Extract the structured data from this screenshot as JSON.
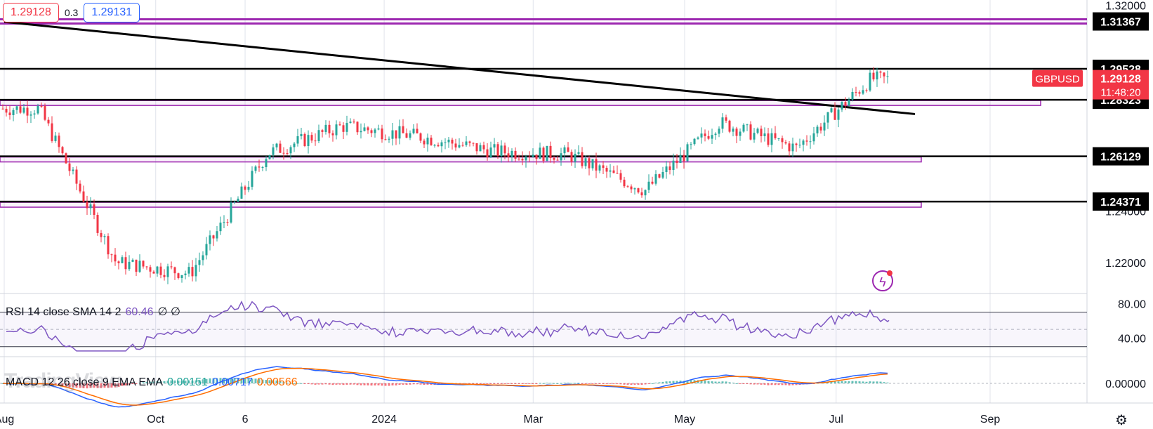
{
  "hud": {
    "bid": "1.29128",
    "spread": "0.3",
    "ask": "1.29131"
  },
  "symbol_tag": {
    "symbol": "GBPUSD",
    "price": "1.29128",
    "countdown": "11:48:20"
  },
  "rsi": {
    "label": "RSI 14 close SMA 14 2",
    "value": "60.46",
    "extra": "∅ ∅"
  },
  "macd": {
    "label": "MACD 12 26 close 9 EMA EMA",
    "hist": "0.00151",
    "macd": "0.00717",
    "signal": "0.00566"
  },
  "watermark": "TradingView",
  "colors": {
    "up": "#26a69a",
    "down": "#f23645",
    "zone": "#9c27b0",
    "rsi_line": "#7e57c2",
    "macd_line": "#2962ff",
    "signal_line": "#ff6d00",
    "level": "#000000"
  },
  "chart_data": {
    "type": "candlestick",
    "symbol": "GBPUSD",
    "timeframe": "1D",
    "x_tick_labels": [
      "Aug",
      "Oct",
      "6",
      "2024",
      "Mar",
      "May",
      "Jul",
      "Sep"
    ],
    "y_tick_labels": [
      "1.32000",
      "1.24000",
      "1.22000"
    ],
    "ylim": [
      1.208,
      1.322
    ],
    "levels": [
      {
        "price": 1.31367,
        "label": "1.31367",
        "style": "zone",
        "color": "#9c27b0"
      },
      {
        "price": 1.29528,
        "label": "1.29528",
        "style": "line",
        "color": "#000000"
      },
      {
        "price": 1.28323,
        "label": "1.28323",
        "style": "line+zone",
        "color": "#000000"
      },
      {
        "price": 1.26129,
        "label": "1.26129",
        "style": "line+zone",
        "color": "#000000"
      },
      {
        "price": 1.24371,
        "label": "1.24371",
        "style": "line+zone",
        "color": "#000000"
      }
    ],
    "trendline": {
      "from": [
        "2023-08-01",
        1.3135
      ],
      "to": [
        "2024-08-01",
        1.2777
      ]
    },
    "monthly_closes": [
      [
        "2023-08",
        1.2798
      ],
      [
        "2023-09",
        1.2201
      ],
      [
        "2023-10",
        1.2158
      ],
      [
        "2023-11",
        1.2625
      ],
      [
        "2023-12",
        1.273
      ],
      [
        "2024-01",
        1.269
      ],
      [
        "2024-02",
        1.2631
      ],
      [
        "2024-03",
        1.262
      ],
      [
        "2024-04",
        1.248
      ],
      [
        "2024-05",
        1.2744
      ],
      [
        "2024-06",
        1.2645
      ],
      [
        "2024-07",
        1.2913
      ]
    ],
    "rsi_axis_labels": [
      "80.00",
      "40.00"
    ],
    "rsi_last": 60.46,
    "macd_axis_labels": [
      "0.00000"
    ],
    "macd_last": {
      "hist": 0.00151,
      "macd": 0.00717,
      "signal": 0.00566
    }
  }
}
